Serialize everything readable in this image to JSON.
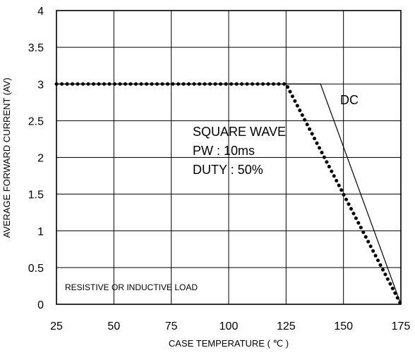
{
  "chart_data": {
    "type": "line",
    "title": "",
    "xlabel": "CASE TEMPERATURE ( ℃ )",
    "ylabel": "AVERAGE FORWARD  CURRENT (AV)",
    "xlim": [
      25,
      175
    ],
    "ylim": [
      0,
      4
    ],
    "x_ticks": [
      "25",
      "50",
      "75",
      "100",
      "125",
      "150",
      "175"
    ],
    "y_ticks": [
      "0",
      "0.5",
      "1",
      "1.5",
      "2",
      "2.5",
      "3",
      "3.5",
      "4"
    ],
    "grid": true,
    "series": [
      {
        "name": "DC",
        "style": "solid",
        "x": [
          25,
          140,
          175
        ],
        "y": [
          3,
          3,
          0
        ]
      },
      {
        "name": "SQUARE WAVE",
        "style": "dotted",
        "x": [
          25,
          125,
          175
        ],
        "y": [
          3,
          3,
          0
        ]
      }
    ],
    "annotations": {
      "dc": "DC",
      "square_wave": [
        "SQUARE WAVE",
        "PW : 10ms",
        "DUTY : 50%"
      ],
      "load": "RESISTIVE OR INDUCTIVE LOAD"
    },
    "colors": {
      "line": "#000000",
      "background": "#ffffff"
    }
  }
}
